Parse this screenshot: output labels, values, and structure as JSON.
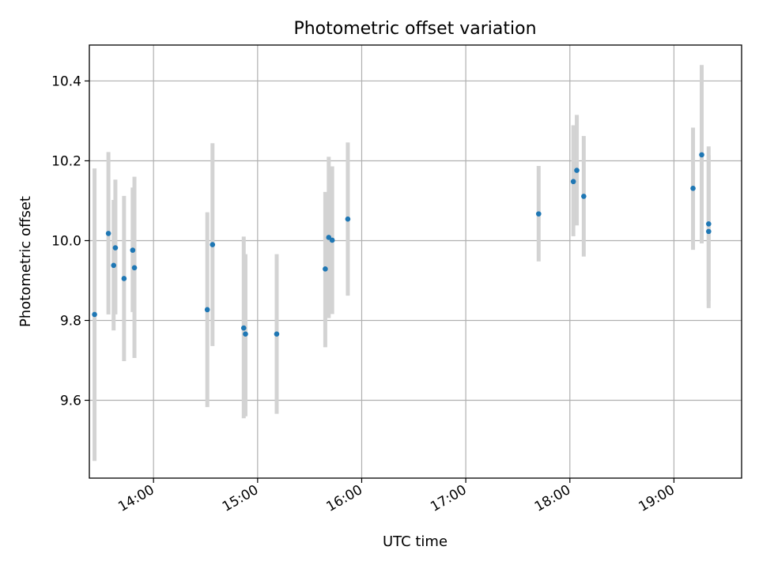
{
  "chart_data": {
    "type": "scatter",
    "title": "Photometric offset variation",
    "xlabel": "UTC time",
    "ylabel": "Photometric offset",
    "x_unit": "UTC clock time (HH:MM)",
    "xlim": [
      "13:23",
      "19:39"
    ],
    "ylim": [
      9.405,
      10.49
    ],
    "x_ticks": [
      "14:00",
      "15:00",
      "16:00",
      "17:00",
      "18:00",
      "19:00"
    ],
    "y_ticks": [
      9.6,
      9.8,
      10.0,
      10.2,
      10.4
    ],
    "y_tick_labels": [
      "9.6",
      "9.8",
      "10.0",
      "10.2",
      "10.4"
    ],
    "grid": true,
    "marker_color": "#1f77b4",
    "errorbar_color": "#d3d3d3",
    "points": [
      {
        "x": "13:26",
        "y": 9.815,
        "ylow": 9.448,
        "yhigh": 10.181
      },
      {
        "x": "13:34",
        "y": 10.018,
        "ylow": 9.815,
        "yhigh": 10.222
      },
      {
        "x": "13:37",
        "y": 9.938,
        "ylow": 9.775,
        "yhigh": 10.102
      },
      {
        "x": "13:38",
        "y": 9.982,
        "ylow": 9.815,
        "yhigh": 10.153
      },
      {
        "x": "13:43",
        "y": 9.905,
        "ylow": 9.698,
        "yhigh": 10.112
      },
      {
        "x": "13:48",
        "y": 9.976,
        "ylow": 9.821,
        "yhigh": 10.133
      },
      {
        "x": "13:49",
        "y": 9.932,
        "ylow": 9.706,
        "yhigh": 10.16
      },
      {
        "x": "14:31",
        "y": 9.827,
        "ylow": 9.583,
        "yhigh": 10.071
      },
      {
        "x": "14:34",
        "y": 9.99,
        "ylow": 9.736,
        "yhigh": 10.244
      },
      {
        "x": "14:52",
        "y": 9.781,
        "ylow": 9.555,
        "yhigh": 10.01
      },
      {
        "x": "14:53",
        "y": 9.766,
        "ylow": 9.56,
        "yhigh": 9.966
      },
      {
        "x": "15:11",
        "y": 9.766,
        "ylow": 9.566,
        "yhigh": 9.966
      },
      {
        "x": "15:39",
        "y": 9.929,
        "ylow": 9.733,
        "yhigh": 10.122
      },
      {
        "x": "15:41",
        "y": 10.008,
        "ylow": 9.806,
        "yhigh": 10.21
      },
      {
        "x": "15:43",
        "y": 10.001,
        "ylow": 9.816,
        "yhigh": 10.186
      },
      {
        "x": "15:52",
        "y": 10.054,
        "ylow": 9.862,
        "yhigh": 10.246
      },
      {
        "x": "17:42",
        "y": 10.067,
        "ylow": 9.948,
        "yhigh": 10.187
      },
      {
        "x": "18:02",
        "y": 10.148,
        "ylow": 10.011,
        "yhigh": 10.289
      },
      {
        "x": "18:04",
        "y": 10.176,
        "ylow": 10.038,
        "yhigh": 10.315
      },
      {
        "x": "18:08",
        "y": 10.111,
        "ylow": 9.96,
        "yhigh": 10.262
      },
      {
        "x": "19:11",
        "y": 10.131,
        "ylow": 9.977,
        "yhigh": 10.283
      },
      {
        "x": "19:16",
        "y": 10.215,
        "ylow": 9.993,
        "yhigh": 10.44
      },
      {
        "x": "19:20",
        "y": 10.042,
        "ylow": 9.849,
        "yhigh": 10.236
      },
      {
        "x": "19:20",
        "y": 10.023,
        "ylow": 9.831,
        "yhigh": 10.214
      }
    ]
  }
}
